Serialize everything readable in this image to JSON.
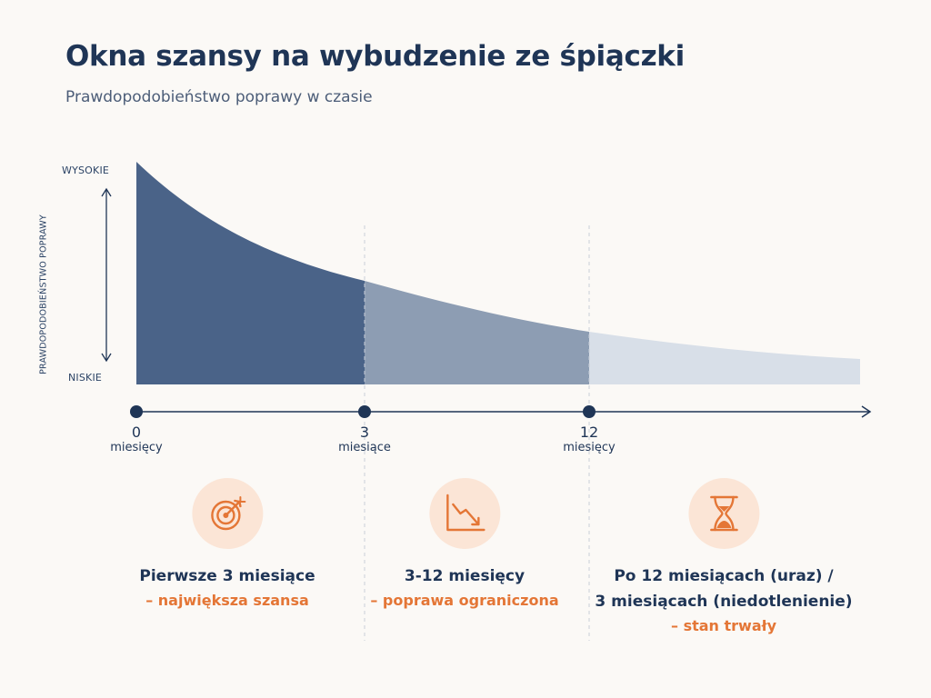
{
  "title": "Okna szansy na wybudzenie ze śpiączki",
  "subtitle": "Prawdopodobieństwo poprawy w czasie",
  "y_axis": {
    "title": "PRAWDOPODOBIEŃSTWO POPRAWY",
    "high": "WYSOKIE",
    "low": "NISKIE"
  },
  "timeline": [
    {
      "value": "0",
      "unit": "miesięcy"
    },
    {
      "value": "3",
      "unit": "miesiące"
    },
    {
      "value": "12",
      "unit": "miesięcy"
    }
  ],
  "cards": [
    {
      "icon": "target-icon",
      "heading_lines": [
        "Pierwsze 3 miesiące"
      ],
      "note": "– największa szansa"
    },
    {
      "icon": "declining-chart-icon",
      "heading_lines": [
        "3-12 miesięcy"
      ],
      "note": "– poprawa ograniczona"
    },
    {
      "icon": "hourglass-icon",
      "heading_lines": [
        "Po 12 miesiącach (uraz) /",
        "3 miesiącach (niedotlenienie)"
      ],
      "note": "– stan trwały"
    }
  ],
  "colors": {
    "phase1": "#4a6388",
    "phase2": "#8d9db3",
    "phase3": "#d8dfe8",
    "accent": "#e47636",
    "icon_bg": "#fbe5d6",
    "navy": "#1f3556"
  }
}
